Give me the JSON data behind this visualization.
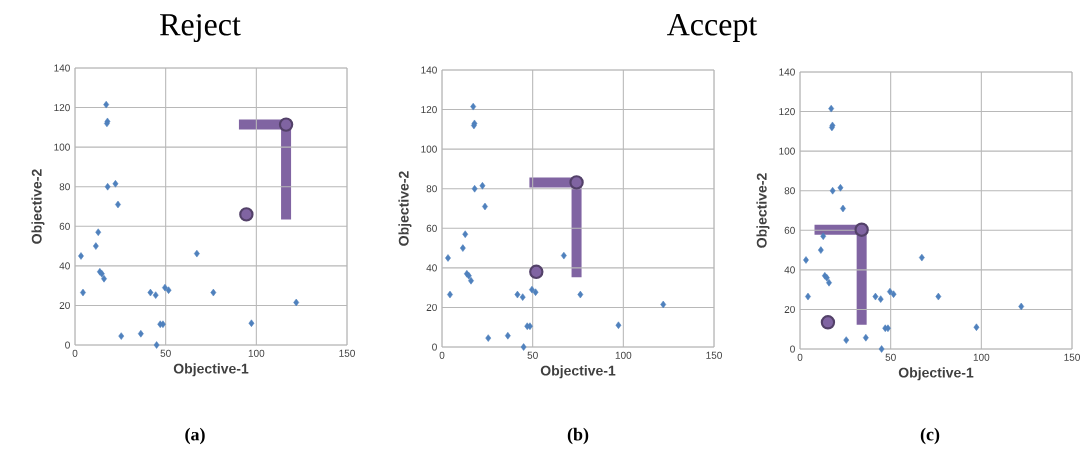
{
  "chart_data": [
    {
      "type": "scatter",
      "title": "Reject",
      "xlabel": "Objective-1",
      "ylabel": "Objective-2",
      "xlim": [
        0,
        150
      ],
      "ylim": [
        0,
        140
      ],
      "xticks": [
        0,
        50,
        100,
        150
      ],
      "yticks": [
        0,
        20,
        40,
        60,
        80,
        100,
        120,
        140
      ],
      "grid": true,
      "annotations": [
        "(a)"
      ],
      "series": [
        {
          "color": "#4f81bd",
          "marker": "diamond",
          "x": [
            17.2,
            17.9,
            17.6,
            18,
            22.3,
            23.7,
            12.8,
            11.5,
            3.3,
            13.7,
            14.8,
            16,
            4.4,
            25.5,
            36.3,
            45,
            41.6,
            44.5,
            49.6,
            51.6,
            47,
            48.5,
            67.2,
            76.3,
            97.3,
            122
          ],
          "values": [
            121.5,
            113,
            112,
            80,
            81.5,
            71,
            57,
            50,
            45,
            37,
            36,
            33.5,
            26.5,
            4.5,
            5.7,
            0,
            26.5,
            25.2,
            29,
            27.7,
            10.5,
            10.5,
            46.2,
            26.5,
            11,
            21.5
          ]
        },
        {
          "color": "#8064a2",
          "marker": "circle",
          "x": [
            94.5,
            116.4
          ],
          "values": [
            66,
            111.4
          ]
        }
      ]
    },
    {
      "type": "scatter",
      "title": "Accept",
      "xlabel": "Objective-1",
      "ylabel": "Objective-2",
      "xlim": [
        0,
        150
      ],
      "ylim": [
        0,
        140
      ],
      "xticks": [
        0,
        50,
        100,
        150
      ],
      "yticks": [
        0,
        20,
        40,
        60,
        80,
        100,
        120,
        140
      ],
      "grid": true,
      "annotations": [
        "(b)"
      ],
      "series": [
        {
          "color": "#4f81bd",
          "marker": "diamond",
          "x": [
            17.2,
            17.9,
            17.6,
            18,
            22.3,
            23.7,
            12.8,
            11.5,
            3.3,
            13.7,
            14.8,
            16,
            4.4,
            25.5,
            36.3,
            45,
            41.6,
            44.5,
            49.6,
            51.6,
            47,
            48.5,
            67.2,
            76.3,
            97.3,
            122
          ],
          "values": [
            121.5,
            113,
            112,
            80,
            81.5,
            71,
            57,
            50,
            45,
            37,
            36,
            33.5,
            26.5,
            4.5,
            5.7,
            0,
            26.5,
            25.2,
            29,
            27.7,
            10.5,
            10.5,
            46.2,
            26.5,
            11,
            21.5
          ]
        },
        {
          "color": "#8064a2",
          "marker": "circle",
          "x": [
            52,
            74.2
          ],
          "values": [
            38,
            83.2
          ]
        }
      ]
    },
    {
      "type": "scatter",
      "xlabel": "Objective-1",
      "ylabel": "Objective-2",
      "xlim": [
        0,
        150
      ],
      "ylim": [
        0,
        140
      ],
      "xticks": [
        0,
        50,
        100,
        150
      ],
      "yticks": [
        0,
        20,
        40,
        60,
        80,
        100,
        120,
        140
      ],
      "grid": true,
      "annotations": [
        "(c)"
      ],
      "series": [
        {
          "color": "#4f81bd",
          "marker": "diamond",
          "x": [
            17.2,
            17.9,
            17.6,
            18,
            22.3,
            23.7,
            12.8,
            11.5,
            3.3,
            13.7,
            14.8,
            16,
            4.4,
            25.5,
            36.3,
            45,
            41.6,
            44.5,
            49.6,
            51.6,
            47,
            48.5,
            67.2,
            76.3,
            97.3,
            122
          ],
          "values": [
            121.5,
            113,
            112,
            80,
            81.5,
            71,
            57,
            50,
            45,
            37,
            36,
            33.5,
            26.5,
            4.5,
            5.7,
            0,
            26.5,
            25.2,
            29,
            27.7,
            10.5,
            10.5,
            46.2,
            26.5,
            11,
            21.5
          ]
        },
        {
          "color": "#8064a2",
          "marker": "circle",
          "x": [
            15.4,
            34
          ],
          "values": [
            13.5,
            60.3
          ]
        }
      ]
    }
  ]
}
